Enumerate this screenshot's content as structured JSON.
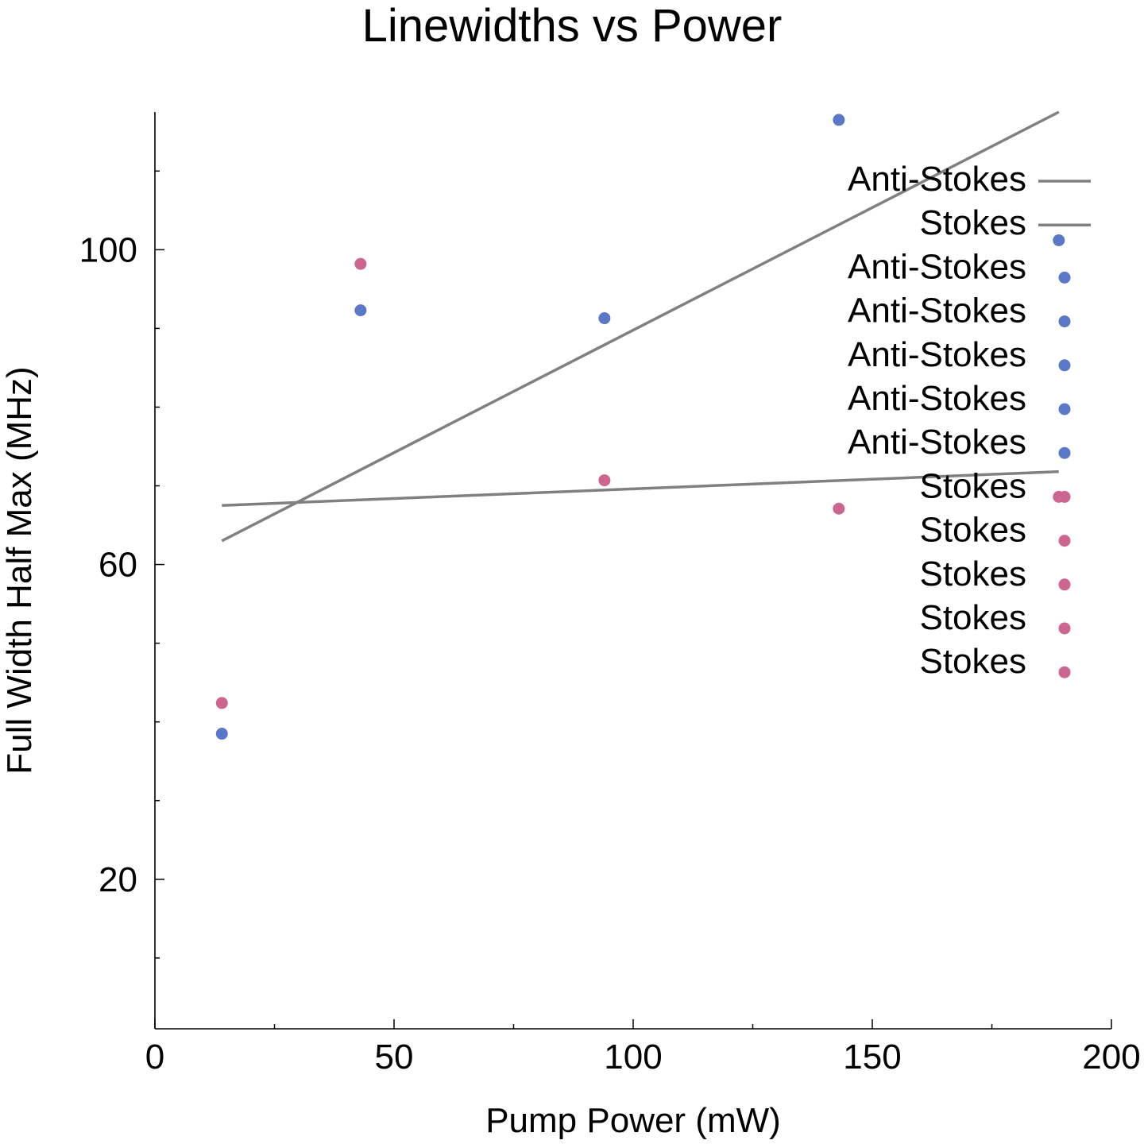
{
  "chart_data": {
    "type": "scatter",
    "title": "Linewidths vs Power",
    "xlabel": "Pump Power (mW)",
    "ylabel": "Full Width Half Max (MHz)",
    "xlim": [
      0,
      200
    ],
    "ylim": [
      1,
      117.5
    ],
    "x_ticks": [
      0,
      50,
      100,
      150,
      200
    ],
    "y_ticks": [
      20,
      60,
      100
    ],
    "x_minor_step": 25,
    "y_minor_step": 10,
    "grid": false,
    "legend_position": "top-right",
    "colors": {
      "anti_stokes": "#5b77c8",
      "stokes": "#cc6690",
      "fit_line": "#808080",
      "axis": "#000000"
    },
    "fits": [
      {
        "legend_label": "Anti-Stokes",
        "x": [
          14,
          189
        ],
        "y": [
          63,
          117.5
        ]
      },
      {
        "legend_label": "Stokes",
        "x": [
          14,
          189
        ],
        "y": [
          67.5,
          71.8
        ]
      }
    ],
    "series": [
      {
        "legend_labels": [
          "Anti-Stokes",
          "Anti-Stokes",
          "Anti-Stokes",
          "Anti-Stokes",
          "Anti-Stokes"
        ],
        "color": "#5b77c8",
        "x": [
          14,
          43,
          94,
          143,
          189
        ],
        "y": [
          38.5,
          92.3,
          91.3,
          116.5,
          101.2
        ]
      },
      {
        "legend_labels": [
          "Stokes",
          "Stokes",
          "Stokes",
          "Stokes",
          "Stokes"
        ],
        "color": "#cc6690",
        "x": [
          14,
          43,
          94,
          143,
          189
        ],
        "y": [
          42.4,
          98.2,
          70.7,
          67.1,
          68.6
        ]
      }
    ],
    "legend": [
      {
        "label": "Anti-Stokes",
        "kind": "line",
        "color": "#808080"
      },
      {
        "label": "Stokes",
        "kind": "line",
        "color": "#808080"
      },
      {
        "label": "Anti-Stokes",
        "kind": "marker",
        "color": "#5b77c8"
      },
      {
        "label": "Anti-Stokes",
        "kind": "marker",
        "color": "#5b77c8"
      },
      {
        "label": "Anti-Stokes",
        "kind": "marker",
        "color": "#5b77c8"
      },
      {
        "label": "Anti-Stokes",
        "kind": "marker",
        "color": "#5b77c8"
      },
      {
        "label": "Anti-Stokes",
        "kind": "marker",
        "color": "#5b77c8"
      },
      {
        "label": "Stokes",
        "kind": "marker",
        "color": "#cc6690"
      },
      {
        "label": "Stokes",
        "kind": "marker",
        "color": "#cc6690"
      },
      {
        "label": "Stokes",
        "kind": "marker",
        "color": "#cc6690"
      },
      {
        "label": "Stokes",
        "kind": "marker",
        "color": "#cc6690"
      },
      {
        "label": "Stokes",
        "kind": "marker",
        "color": "#cc6690"
      }
    ]
  }
}
